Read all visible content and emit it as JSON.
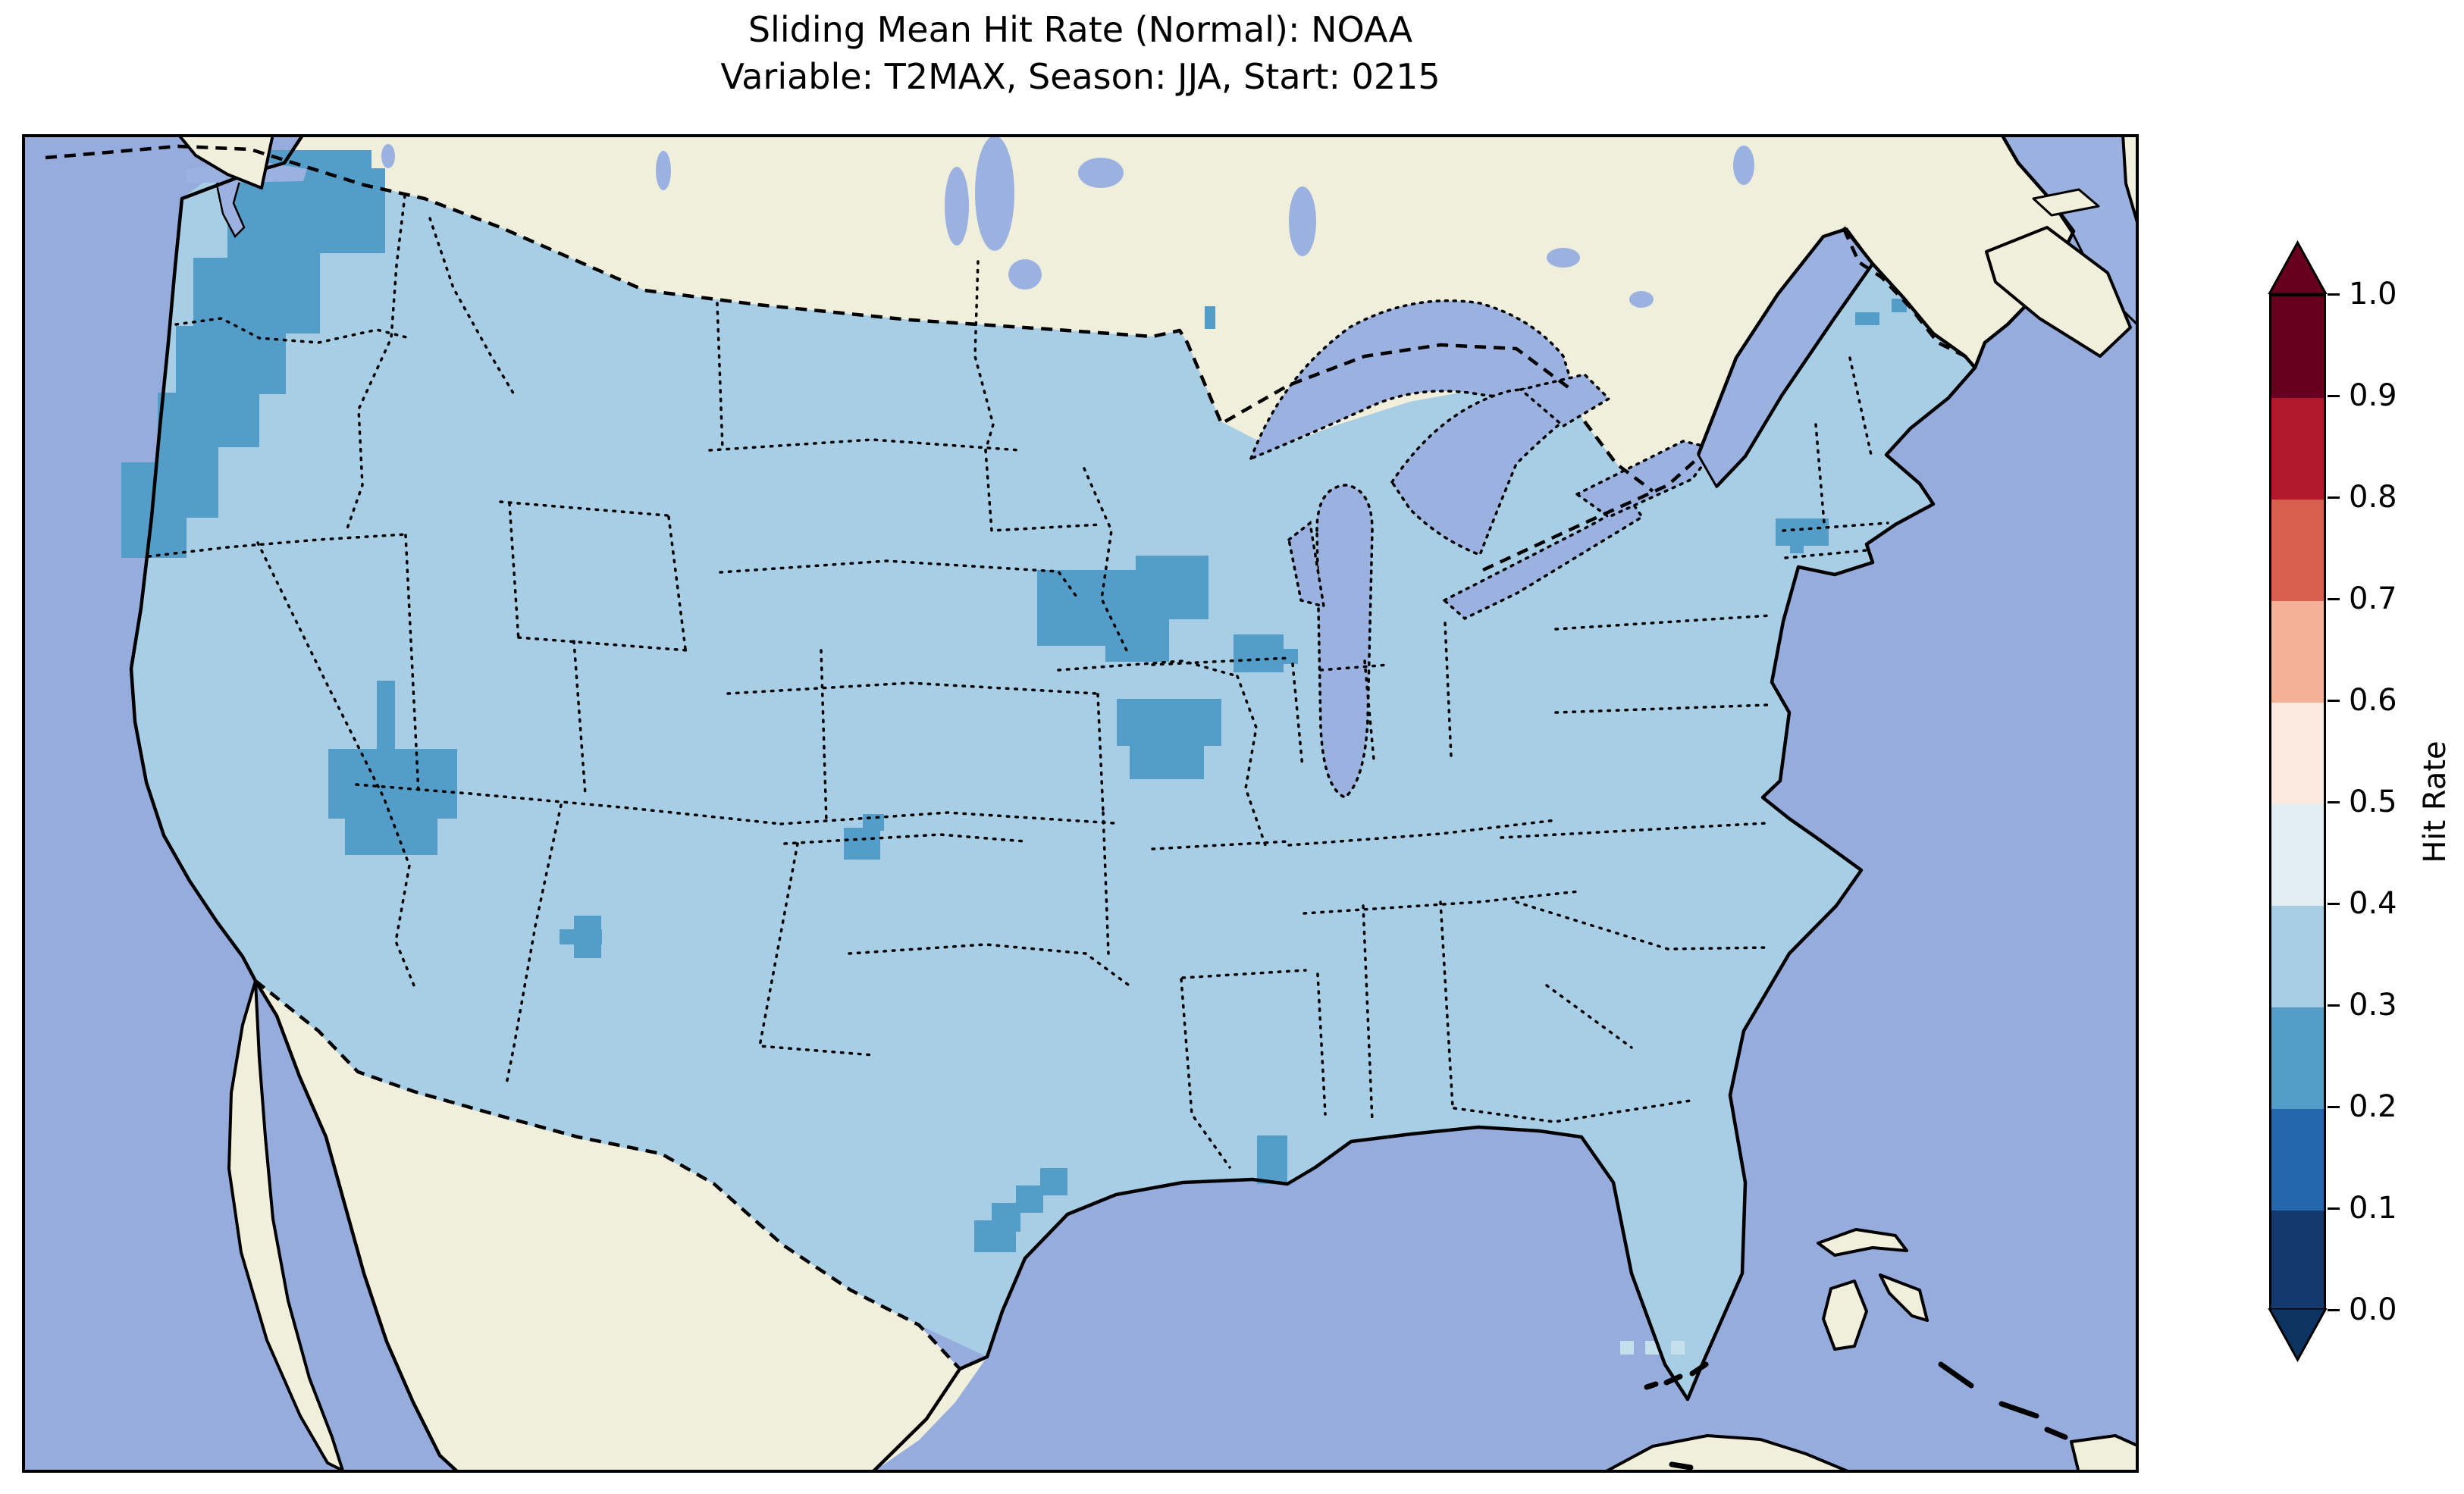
{
  "figure": {
    "title_line1": "Sliding Mean Hit Rate (Normal): NOAA",
    "title_line2": "Variable: T2MAX, Season: JJA, Start: 0215"
  },
  "colorbar": {
    "label": "Hit Rate",
    "tick_labels": [
      "1.0",
      "0.9",
      "0.8",
      "0.7",
      "0.6",
      "0.5",
      "0.4",
      "0.3",
      "0.2",
      "0.1",
      "0.0"
    ],
    "segments_top_to_bottom": [
      {
        "range": "0.9–1.0",
        "color": "#67001f"
      },
      {
        "range": "0.8–0.9",
        "color": "#b2182b"
      },
      {
        "range": "0.7–0.8",
        "color": "#d6604d"
      },
      {
        "range": "0.6–0.7",
        "color": "#f5b197"
      },
      {
        "range": "0.5–0.6",
        "color": "#fbe9e0"
      },
      {
        "range": "0.4–0.5",
        "color": "#e2edf3"
      },
      {
        "range": "0.3–0.4",
        "color": "#a7cee4"
      },
      {
        "range": "0.2–0.3",
        "color": "#539dc8"
      },
      {
        "range": "0.1–0.2",
        "color": "#2467ad"
      },
      {
        "range": "0.0–0.1",
        "color": "#143a6d"
      }
    ],
    "over_arrow_color": "#67001f",
    "under_arrow_color": "#0d3361"
  },
  "map": {
    "ocean_color": "#95acdd",
    "lake_color": "#9bb1e0",
    "land_color": "#f0efdc",
    "coast_color": "#000000",
    "mesh_base_color": "#a7cee4",
    "mesh_dark_color": "#539dc8",
    "mesh_light_color": "#c5e0ec",
    "base_bin": "0.3–0.4",
    "dark_bin": "0.2–0.3",
    "light_bin": "0.4–0.5",
    "dark_regions": [
      "Washington / Cascades band",
      "Southern Minnesota",
      "Western Wisconsin",
      "Central Iowa",
      "Southern Utah",
      "Western New Mexico",
      "Colorado–Kansas border spot",
      "South-Central Texas",
      "Southeast Louisiana",
      "Interior Maine (two spots)",
      "Lower Hudson / NYC area"
    ],
    "light_regions": [
      "Florida Keys cells"
    ]
  },
  "chart_data": {
    "type": "heatmap",
    "title": "Sliding Mean Hit Rate (Normal): NOAA",
    "subtitle": "Variable: T2MAX, Season: JJA, Start: 0215",
    "geography": "Contiguous United States (pcolormesh over CONUS, Lambert-type projection incl. S. Canada, Mexico, Bahamas, Cuba)",
    "colorbar_label": "Hit Rate",
    "colorbar_ticks": [
      0.0,
      0.1,
      0.2,
      0.3,
      0.4,
      0.5,
      0.6,
      0.7,
      0.8,
      0.9,
      1.0
    ],
    "colorbar_extend": "both",
    "bins": [
      {
        "range": [
          0.0,
          0.1
        ],
        "color": "#143a6d"
      },
      {
        "range": [
          0.1,
          0.2
        ],
        "color": "#2467ad"
      },
      {
        "range": [
          0.2,
          0.3
        ],
        "color": "#539dc8"
      },
      {
        "range": [
          0.3,
          0.4
        ],
        "color": "#a7cee4"
      },
      {
        "range": [
          0.4,
          0.5
        ],
        "color": "#e2edf3"
      },
      {
        "range": [
          0.5,
          0.6
        ],
        "color": "#fbe9e0"
      },
      {
        "range": [
          0.6,
          0.7
        ],
        "color": "#f5b197"
      },
      {
        "range": [
          0.7,
          0.8
        ],
        "color": "#d6604d"
      },
      {
        "range": [
          0.8,
          0.9
        ],
        "color": "#b2182b"
      },
      {
        "range": [
          0.9,
          1.0
        ],
        "color": "#67001f"
      }
    ],
    "dominant_value_bin": [
      0.3,
      0.4
    ],
    "anomalies": [
      {
        "region": "Washington state and Cascades band into Oregon/N. California",
        "hit_rate_bin": [
          0.2,
          0.3
        ]
      },
      {
        "region": "Southern Minnesota blob",
        "hit_rate_bin": [
          0.2,
          0.3
        ]
      },
      {
        "region": "Western Wisconsin blob",
        "hit_rate_bin": [
          0.2,
          0.3
        ]
      },
      {
        "region": "Central Iowa blob",
        "hit_rate_bin": [
          0.2,
          0.3
        ]
      },
      {
        "region": "Southern Utah blob",
        "hit_rate_bin": [
          0.2,
          0.3
        ]
      },
      {
        "region": "Western New Mexico cross-shaped patch",
        "hit_rate_bin": [
          0.2,
          0.3
        ]
      },
      {
        "region": "Colorado–Kansas border spot",
        "hit_rate_bin": [
          0.2,
          0.3
        ]
      },
      {
        "region": "South-central Texas diagonal patch",
        "hit_rate_bin": [
          0.2,
          0.3
        ]
      },
      {
        "region": "Southeast Louisiana cell",
        "hit_rate_bin": [
          0.2,
          0.3
        ]
      },
      {
        "region": "Interior Maine (two small spots)",
        "hit_rate_bin": [
          0.2,
          0.3
        ]
      },
      {
        "region": "Lower Hudson / NYC area",
        "hit_rate_bin": [
          0.2,
          0.3
        ]
      },
      {
        "region": "Florida Keys cells",
        "hit_rate_bin": [
          0.4,
          0.5
        ]
      }
    ]
  }
}
